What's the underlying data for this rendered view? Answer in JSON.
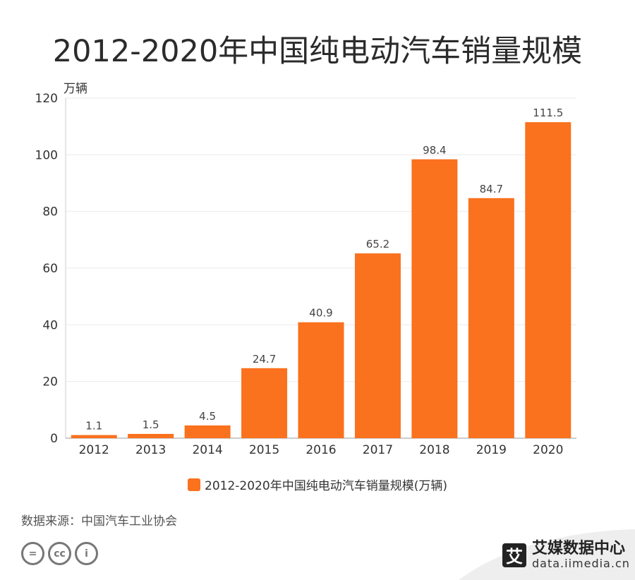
{
  "title": "2012-2020年中国纯电动汽车销量规模",
  "chart_data": {
    "type": "bar",
    "title": "2012-2020年中国纯电动汽车销量规模",
    "unit_label": "万辆",
    "categories": [
      "2012",
      "2013",
      "2014",
      "2015",
      "2016",
      "2017",
      "2018",
      "2019",
      "2020"
    ],
    "series": [
      {
        "name": "2012-2020年中国纯电动汽车销量规模(万辆)",
        "values": [
          1.1,
          1.5,
          4.5,
          24.7,
          40.9,
          65.2,
          98.4,
          84.7,
          111.5
        ],
        "data_labels": [
          "1.1",
          "1.5",
          "4.5",
          "24.7",
          "40.9",
          "65.2",
          "98.4",
          "84.7",
          "111.5"
        ]
      }
    ],
    "y_ticks": [
      "0",
      "20",
      "40",
      "60",
      "80",
      "100",
      "120"
    ],
    "ylim": [
      0,
      120
    ],
    "grid": true,
    "legend_position": "bottom",
    "bar_color": "#fa711e"
  },
  "source": "数据来源：中国汽车工业协会",
  "brand": {
    "name": "艾媒数据中心",
    "url": "data.iimedia.cn",
    "logo_char": "艾"
  },
  "license_icons": [
    "cc-equals-icon",
    "cc-icon",
    "cc-attribution-icon"
  ],
  "colors": {
    "bar": "#fa711e",
    "title": "#2b2b2b",
    "grid": "#ebebeb"
  }
}
